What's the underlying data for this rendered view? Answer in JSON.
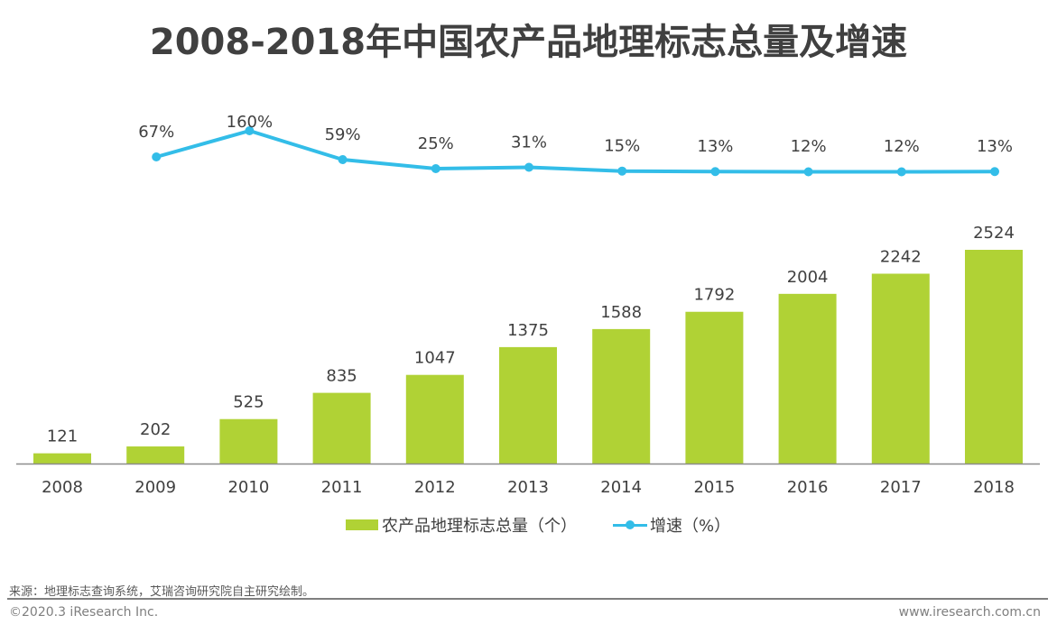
{
  "chart_data": {
    "type": "bar+line",
    "title": "2008-2018年中国农产品地理标志总量及增速",
    "categories": [
      "2008",
      "2009",
      "2010",
      "2011",
      "2012",
      "2013",
      "2014",
      "2015",
      "2016",
      "2017",
      "2018"
    ],
    "series": [
      {
        "name": "农产品地理标志总量（个）",
        "type": "bar",
        "color": "#b0d235",
        "values": [
          121,
          202,
          525,
          835,
          1047,
          1375,
          1588,
          1792,
          2004,
          2242,
          2524
        ],
        "labels": [
          "121",
          "202",
          "525",
          "835",
          "1047",
          "1375",
          "1588",
          "1792",
          "2004",
          "2242",
          "2524"
        ]
      },
      {
        "name": "增速（%）",
        "type": "line",
        "color": "#33bde8",
        "values": [
          67,
          160,
          59,
          25,
          31,
          15,
          13,
          12,
          12,
          13
        ],
        "x": [
          "2009",
          "2010",
          "2011",
          "2012",
          "2013",
          "2014",
          "2015",
          "2016",
          "2017",
          "2018"
        ],
        "labels": [
          "67%",
          "160%",
          "59%",
          "25%",
          "31%",
          "15%",
          "13%",
          "12%",
          "12%",
          "13%"
        ]
      }
    ],
    "legend": "bottom",
    "grid": false,
    "ylim_bar": [
      0,
      2600
    ]
  },
  "legend": {
    "bar_label": "农产品地理标志总量（个）",
    "line_label": "增速（%）"
  },
  "footer": {
    "source": "来源：地理标志查询系统，艾瑞咨询研究院自主研究绘制。",
    "copyright": "©2020.3 iResearch Inc.",
    "website": "www.iresearch.com.cn"
  }
}
